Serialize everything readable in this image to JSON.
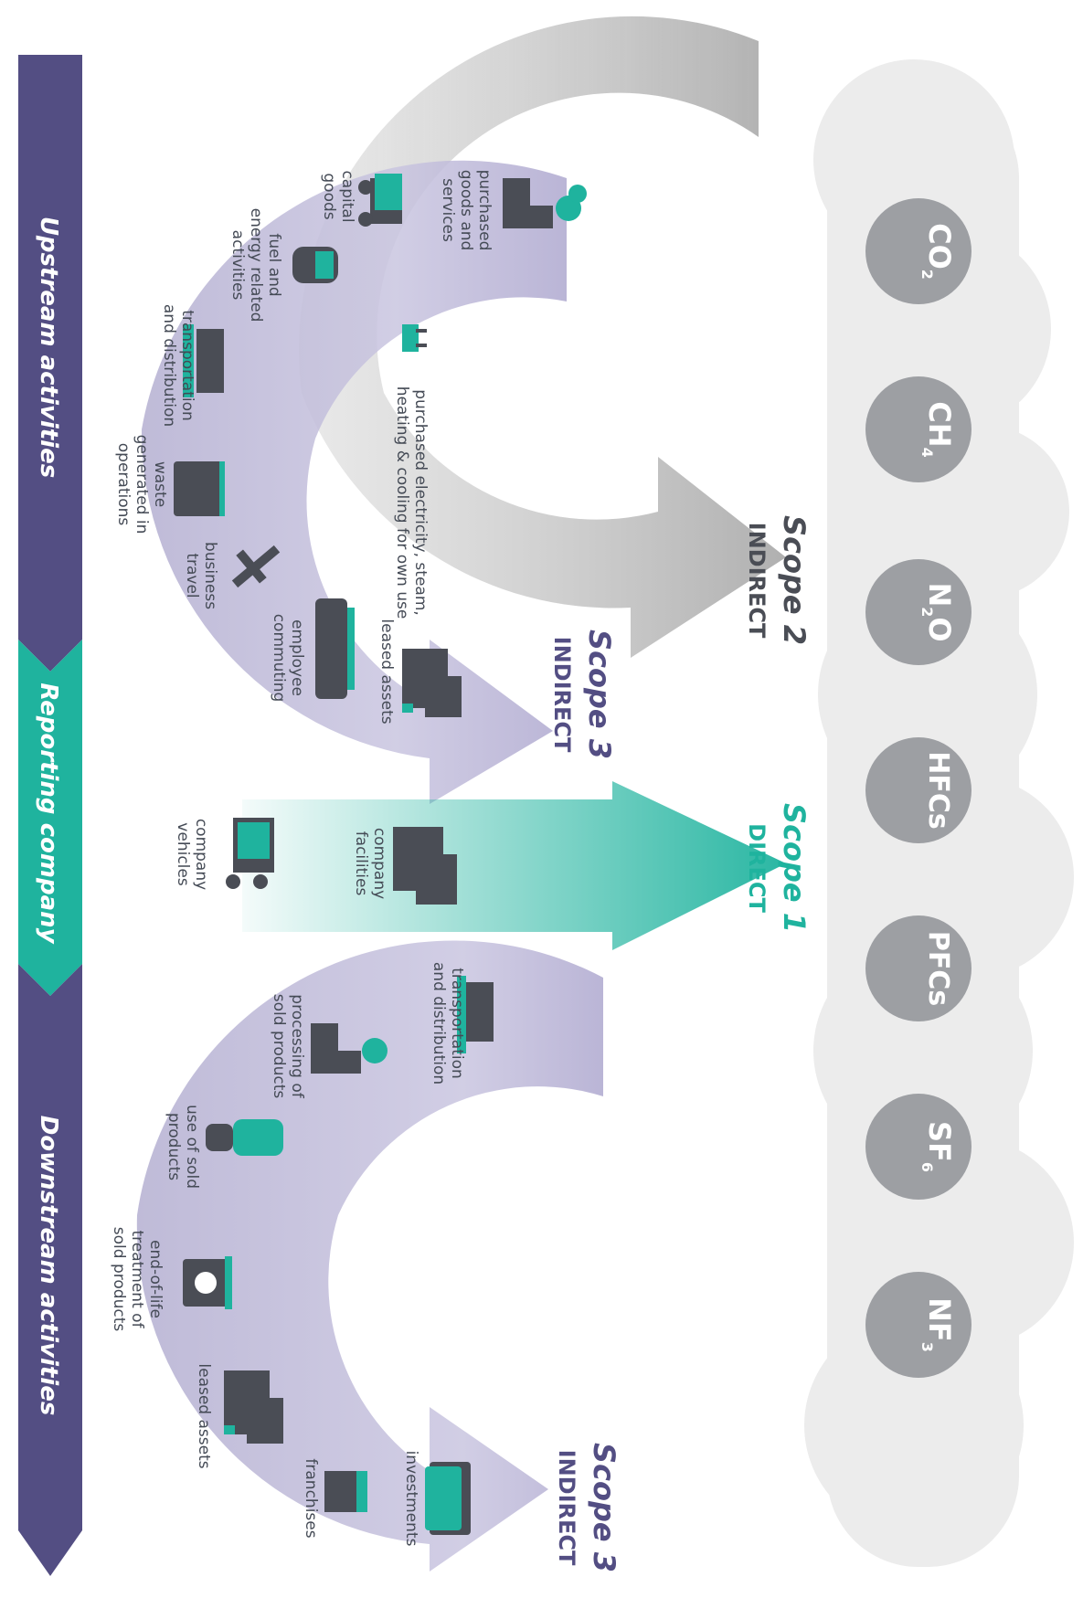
{
  "colors": {
    "purple": "#534e83",
    "teal": "#1fb39e",
    "lavender": "#b4afd1",
    "grey_arrow": "#b8b8b8",
    "cloud": "#ececec",
    "gas_circle": "#9d9fa3",
    "icon_dark": "#4a4d55"
  },
  "gases": [
    {
      "base": "CO",
      "sub": "2"
    },
    {
      "base": "CH",
      "sub": "4"
    },
    {
      "base": "N",
      "sub": "2",
      "tail": "O"
    },
    {
      "base": "HFCs",
      "sub": ""
    },
    {
      "base": "PFCs",
      "sub": ""
    },
    {
      "base": "SF",
      "sub": "6"
    },
    {
      "base": "NF",
      "sub": "3"
    }
  ],
  "scopes": {
    "scope2": {
      "title": "Scope 2",
      "sub": "INDIRECT"
    },
    "scope3_up": {
      "title": "Scope 3",
      "sub": "INDIRECT"
    },
    "scope1": {
      "title": "Scope 1",
      "sub": "DIRECT"
    },
    "scope3_down": {
      "title": "Scope 3",
      "sub": "INDIRECT"
    }
  },
  "bands": {
    "upstream": "Upstream activities",
    "reporting": "Reporting company",
    "downstream": "Downstream activities"
  },
  "activities": {
    "purchased_goods": [
      "purchased",
      "goods and",
      "services"
    ],
    "capital_goods": [
      "capital",
      "goods"
    ],
    "fuel_energy": [
      "fuel and",
      "energy related",
      "activities"
    ],
    "transport_up": [
      "transportation",
      "and distribution"
    ],
    "waste": [
      "waste",
      "generated in",
      "operations"
    ],
    "business_travel": [
      "business",
      "travel"
    ],
    "employee_commuting": [
      "employee",
      "commuting"
    ],
    "leased_up": [
      "leased assets"
    ],
    "electricity": [
      "purchased electricity, steam,",
      "heating & cooling for own use"
    ],
    "company_facilities": [
      "company",
      "facilities"
    ],
    "company_vehicles": [
      "company",
      "vehicles"
    ],
    "transport_down": [
      "transportation",
      "and distribution"
    ],
    "processing": [
      "processing of",
      "sold products"
    ],
    "use_sold": [
      "use of sold",
      "products"
    ],
    "end_of_life": [
      "end-of-life",
      "treatment of",
      "sold products"
    ],
    "leased_down": [
      "leased assets"
    ],
    "franchises": [
      "franchises"
    ],
    "investments": [
      "investments"
    ]
  }
}
